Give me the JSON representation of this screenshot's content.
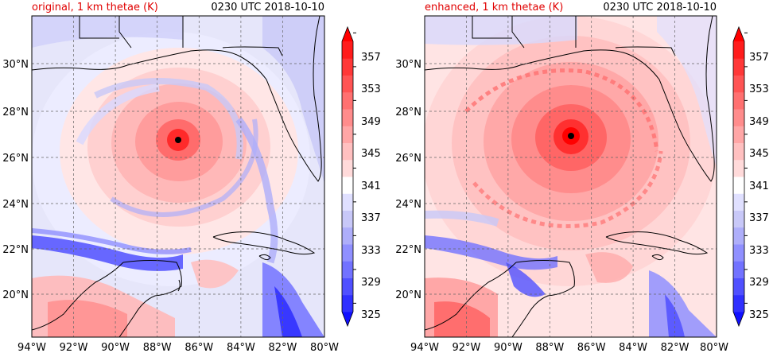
{
  "colors": {
    "left_title": "#e00000",
    "scale": [
      "#1010ff",
      "#3030ff",
      "#5050ff",
      "#7272ff",
      "#9090ff",
      "#aeaefa",
      "#c8c8f8",
      "#e0e0ff",
      "#ffffff",
      "#ffdada",
      "#ffc0c0",
      "#ffa6a6",
      "#ff8c8c",
      "#ff7070",
      "#ff5454",
      "#ff3838",
      "#ff1c1c",
      "#ff0000"
    ]
  },
  "panels": [
    {
      "title_left": "original, 1 km thetae (K)",
      "title_right": "0230 UTC 2018-10-10",
      "storm": {
        "lon": -87.0,
        "lat": 26.75
      }
    },
    {
      "title_left": "enhanced, 1 km thetae (K)",
      "title_right": "0230 UTC 2018-10-10",
      "storm": {
        "lon": -86.9,
        "lat": 26.95
      }
    }
  ],
  "lon_ticks": [
    "94°W",
    "92°W",
    "90°W",
    "88°W",
    "86°W",
    "84°W",
    "82°W",
    "80°W"
  ],
  "lat_ticks": [
    "20°N",
    "22°N",
    "24°N",
    "26°N",
    "28°N",
    "30°N"
  ],
  "colorbar_ticks": [
    "325",
    "329",
    "333",
    "337",
    "341",
    "345",
    "349",
    "353",
    "357"
  ]
}
